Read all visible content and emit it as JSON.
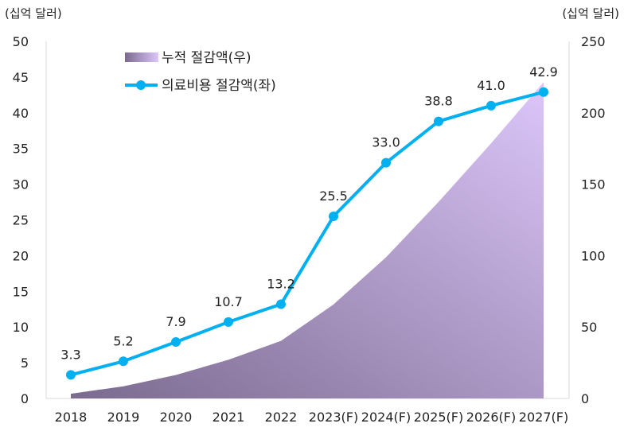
{
  "chart_data": {
    "type": "line+area",
    "categories": [
      "2018",
      "2019",
      "2020",
      "2021",
      "2022",
      "2023(F)",
      "2024(F)",
      "2025(F)",
      "2026(F)",
      "2027(F)"
    ],
    "series": [
      {
        "name": "누적 절감액(우)",
        "type": "area",
        "axis": "right",
        "values": [
          3.3,
          8.5,
          16.4,
          27.1,
          40.3,
          65.8,
          98.8,
          137.6,
          178.6,
          221.5
        ],
        "color_start": "#7b6a8f",
        "color_end": "#dcc6fa"
      },
      {
        "name": "의료비용 절감액(좌)",
        "type": "line",
        "axis": "left",
        "values": [
          3.3,
          5.2,
          7.9,
          10.7,
          13.2,
          25.5,
          33.0,
          38.8,
          41.0,
          42.9
        ],
        "labels": [
          "3.3",
          "5.2",
          "7.9",
          "10.7",
          "13.2",
          "25.5",
          "33.0",
          "38.8",
          "41.0",
          "42.9"
        ],
        "color": "#00b0f0"
      }
    ],
    "left_axis": {
      "label": "(십억 달러)",
      "ylim": [
        0,
        50
      ],
      "ticks": [
        "0",
        "5",
        "10",
        "15",
        "20",
        "25",
        "30",
        "35",
        "40",
        "45",
        "50"
      ]
    },
    "right_axis": {
      "label": "(십억 달러)",
      "ylim": [
        0,
        250
      ],
      "ticks": [
        "0",
        "50",
        "100",
        "150",
        "200",
        "250"
      ]
    },
    "grid": false,
    "legend": "top-left"
  }
}
